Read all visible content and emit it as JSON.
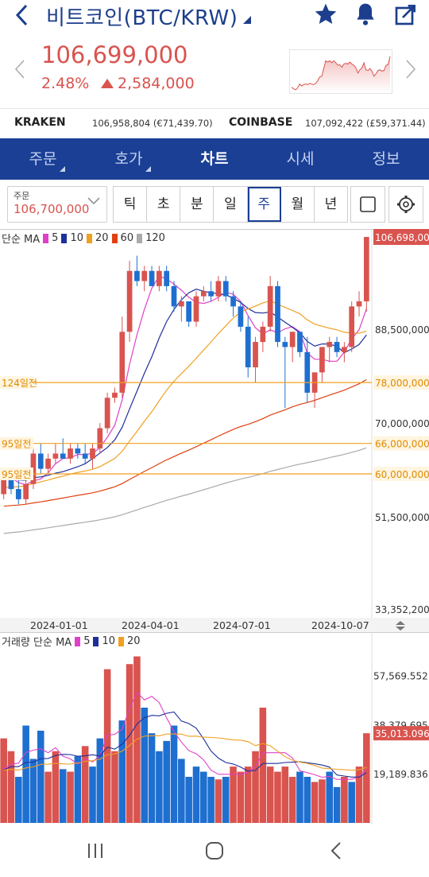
{
  "header": {
    "title": "비트코인(BTC/KRW)",
    "price": "106,699,000",
    "change_pct": "2.48%",
    "change_amt": "2,584,000",
    "colors": {
      "up": "#d9534f",
      "down": "#1e6fd0",
      "brand": "#1a3f95"
    }
  },
  "exchanges": {
    "kraken": {
      "name": "KRAKEN",
      "value": "106,958,804 (€71,439.70)"
    },
    "coinbase": {
      "name": "COINBASE",
      "value": "107,092,422 (£59,371.44)"
    }
  },
  "tabs": [
    {
      "label": "주문"
    },
    {
      "label": "호가"
    },
    {
      "label": "차트"
    },
    {
      "label": "시세"
    },
    {
      "label": "정보"
    }
  ],
  "order": {
    "label": "주문",
    "value": "106,700,000"
  },
  "periods": [
    "틱",
    "초",
    "분",
    "일",
    "주",
    "월",
    "년"
  ],
  "ma_legend": {
    "prefix": "단순 MA",
    "items": [
      {
        "label": "5",
        "color": "#e040c8"
      },
      {
        "label": "10",
        "color": "#1f2f9a"
      },
      {
        "label": "20",
        "color": "#f0a020"
      },
      {
        "label": "60",
        "color": "#e04010"
      },
      {
        "label": "120",
        "color": "#aaaaaa"
      }
    ]
  },
  "vol_legend": {
    "prefix": "거래량 단순 MA",
    "items": [
      {
        "label": "5",
        "color": "#e040c8"
      },
      {
        "label": "10",
        "color": "#1f2f9a"
      },
      {
        "label": "20",
        "color": "#f0a020"
      }
    ]
  },
  "chart_data": [
    {
      "type": "candlestick",
      "x_dates": [
        "2024-01-01",
        "2024-04-01",
        "2024-07-01",
        "2024-10-07"
      ],
      "y_axis_labels": [
        "106,698,000",
        "88,500,000",
        "78,000,000",
        "70,000,000",
        "66,000,000",
        "60,000,000",
        "51,500,000",
        "33,352,200"
      ],
      "ylim": [
        33352200,
        106698000
      ],
      "current_price_label": "106,698,000",
      "reference_lines": [
        {
          "label": "124일전",
          "value_label": "78,000,000",
          "value": 78000000
        },
        {
          "label": "95일전",
          "value_label": "66,000,000",
          "value": 66000000
        },
        {
          "label": "95일전",
          "value_label": "60,000,000",
          "value": 60000000
        }
      ],
      "candles": [
        [
          56,
          60,
          55,
          59
        ],
        [
          59,
          61,
          56,
          57
        ],
        [
          57,
          59,
          54,
          55
        ],
        [
          55,
          59,
          54,
          58
        ],
        [
          58,
          65,
          57,
          64
        ],
        [
          64,
          66,
          60,
          61
        ],
        [
          61,
          64,
          60,
          63
        ],
        [
          63,
          66,
          62,
          64
        ],
        [
          64,
          67,
          63,
          63
        ],
        [
          63,
          66,
          62,
          65
        ],
        [
          65,
          66,
          63,
          64
        ],
        [
          64,
          66,
          62,
          63
        ],
        [
          63,
          66,
          61,
          65
        ],
        [
          65,
          70,
          64,
          69
        ],
        [
          69,
          76,
          68,
          75
        ],
        [
          75,
          77,
          74,
          76
        ],
        [
          76,
          91,
          75,
          88
        ],
        [
          88,
          102,
          86,
          100
        ],
        [
          100,
          103,
          97,
          98
        ],
        [
          98,
          101,
          96,
          100
        ],
        [
          100,
          101,
          97,
          97
        ],
        [
          97,
          101,
          96,
          100
        ],
        [
          100,
          101,
          96,
          97
        ],
        [
          97,
          98,
          92,
          93
        ],
        [
          93,
          95,
          90,
          94
        ],
        [
          94,
          94,
          89,
          90
        ],
        [
          90,
          96,
          89,
          95
        ],
        [
          95,
          97,
          94,
          96
        ],
        [
          96,
          98,
          94,
          95
        ],
        [
          95,
          99,
          94,
          98
        ],
        [
          98,
          99,
          94,
          95
        ],
        [
          95,
          96,
          91,
          93
        ],
        [
          93,
          94,
          88,
          89
        ],
        [
          89,
          91,
          79,
          81
        ],
        [
          81,
          87,
          78,
          86
        ],
        [
          86,
          90,
          84,
          89
        ],
        [
          89,
          99,
          88,
          97
        ],
        [
          97,
          98,
          85,
          86
        ],
        [
          86,
          87,
          73,
          85
        ],
        [
          85,
          88,
          82,
          88
        ],
        [
          88,
          88,
          83,
          84
        ],
        [
          84,
          87,
          74,
          76
        ],
        [
          76,
          78,
          73,
          80
        ],
        [
          80,
          85,
          78,
          85
        ],
        [
          85,
          87,
          82,
          86
        ],
        [
          86,
          87,
          83,
          84
        ],
        [
          84,
          86,
          82,
          85
        ],
        [
          85,
          94,
          84,
          93
        ],
        [
          93,
          96,
          91,
          94
        ],
        [
          94,
          106.7,
          92,
          106.7
        ]
      ],
      "ma_series": [
        {
          "name": "5",
          "color": "#e040c8"
        },
        {
          "name": "10",
          "color": "#1f2f9a"
        },
        {
          "name": "20",
          "color": "#f0a020"
        },
        {
          "name": "60",
          "color": "#e04010"
        },
        {
          "name": "120",
          "color": "#aaaaaa"
        }
      ]
    },
    {
      "type": "bar",
      "y_axis_labels": [
        "57,569.552",
        "38,379.695",
        "35,013.096",
        "19,189.836"
      ],
      "ylim": [
        0,
        72000
      ],
      "current_volume_label": "35,013.096",
      "volumes": [
        [
          33000,
          1
        ],
        [
          28000,
          1
        ],
        [
          18000,
          0
        ],
        [
          38000,
          0
        ],
        [
          25000,
          0
        ],
        [
          36000,
          0
        ],
        [
          20000,
          1
        ],
        [
          28000,
          1
        ],
        [
          21000,
          0
        ],
        [
          20000,
          1
        ],
        [
          26000,
          0
        ],
        [
          30000,
          1
        ],
        [
          22000,
          0
        ],
        [
          33000,
          0
        ],
        [
          60000,
          1
        ],
        [
          28000,
          1
        ],
        [
          40000,
          0
        ],
        [
          62000,
          1
        ],
        [
          65000,
          1
        ],
        [
          45000,
          0
        ],
        [
          35000,
          0
        ],
        [
          28000,
          0
        ],
        [
          32000,
          0
        ],
        [
          38000,
          0
        ],
        [
          25000,
          0
        ],
        [
          18000,
          0
        ],
        [
          22000,
          0
        ],
        [
          20000,
          0
        ],
        [
          18000,
          0
        ],
        [
          17000,
          1
        ],
        [
          18000,
          0
        ],
        [
          22000,
          1
        ],
        [
          20000,
          1
        ],
        [
          22000,
          1
        ],
        [
          28000,
          1
        ],
        [
          45000,
          1
        ],
        [
          22000,
          1
        ],
        [
          20000,
          1
        ],
        [
          22000,
          1
        ],
        [
          18000,
          1
        ],
        [
          20000,
          0
        ],
        [
          18000,
          0
        ],
        [
          16000,
          1
        ],
        [
          17000,
          1
        ],
        [
          20000,
          0
        ],
        [
          14000,
          0
        ],
        [
          18000,
          1
        ],
        [
          16000,
          0
        ],
        [
          22000,
          1
        ],
        [
          35013,
          1
        ]
      ]
    }
  ]
}
